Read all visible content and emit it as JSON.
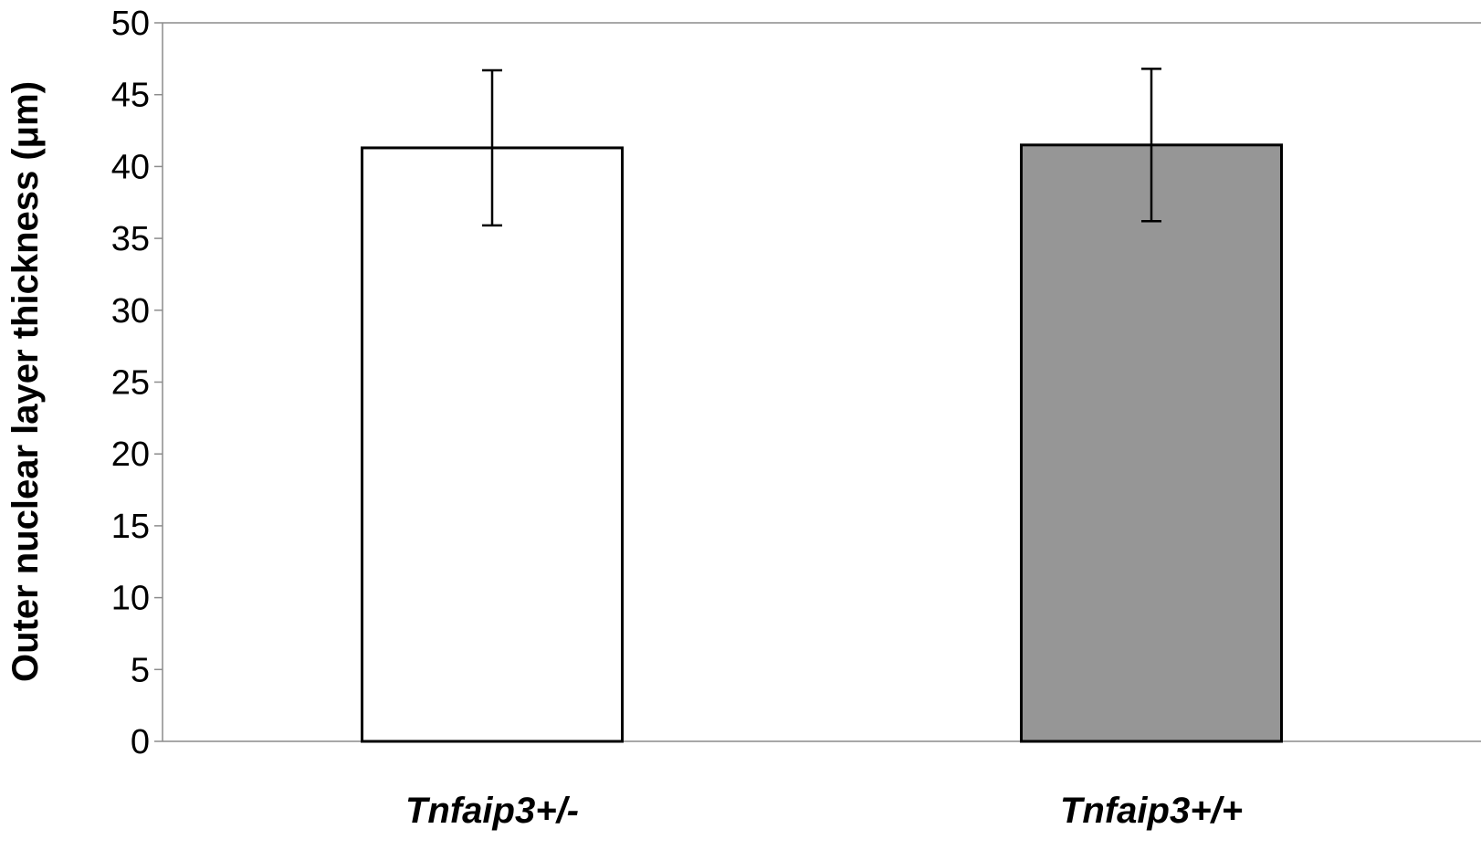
{
  "chart_data": {
    "type": "bar",
    "title": "",
    "xlabel": "",
    "ylabel": "Outer nuclear layer thickness (μm)",
    "categories": [
      "Tnfaip3+/-",
      "Tnfaip3+/+"
    ],
    "values": [
      41.3,
      41.5
    ],
    "error": [
      5.4,
      5.3
    ],
    "ylim": [
      0,
      50
    ],
    "yticks": [
      0,
      5,
      10,
      15,
      20,
      25,
      30,
      35,
      40,
      45,
      50
    ],
    "bar_colors": [
      "#ffffff",
      "#969696"
    ],
    "bar_edge_color": "#000000",
    "grid": false,
    "legend": "none"
  }
}
